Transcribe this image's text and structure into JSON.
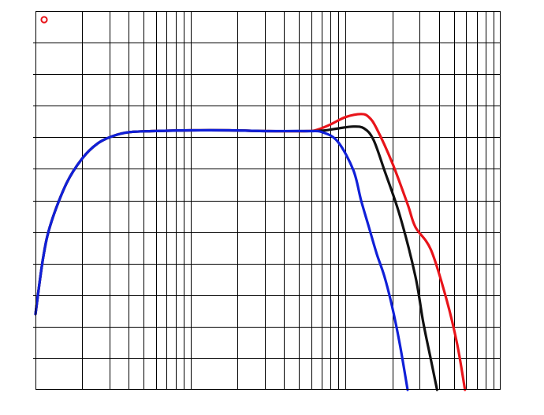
{
  "chart_data": {
    "type": "line",
    "title": "",
    "xlabel": "",
    "ylabel": "",
    "x_scale": "log",
    "x_decades": 3,
    "y_divisions": 12,
    "grid": true,
    "legend": "none",
    "series": [
      {
        "color": "#e8141a",
        "points": [
          [
            0.0,
            0.2
          ],
          [
            0.05,
            0.35
          ],
          [
            0.1,
            0.44
          ],
          [
            0.2,
            0.545
          ],
          [
            0.3,
            0.61
          ],
          [
            0.4,
            0.65
          ],
          [
            0.5,
            0.67
          ],
          [
            0.6,
            0.68
          ],
          [
            0.75,
            0.683
          ],
          [
            1.0,
            0.685
          ],
          [
            1.25,
            0.685
          ],
          [
            1.5,
            0.683
          ],
          [
            1.75,
            0.683
          ],
          [
            1.82,
            0.687
          ],
          [
            1.9,
            0.7
          ],
          [
            2.0,
            0.72
          ],
          [
            2.1,
            0.728
          ],
          [
            2.15,
            0.72
          ],
          [
            2.2,
            0.69
          ],
          [
            2.3,
            0.6
          ],
          [
            2.4,
            0.49
          ],
          [
            2.45,
            0.43
          ],
          [
            2.55,
            0.37
          ],
          [
            2.65,
            0.24
          ],
          [
            2.72,
            0.12
          ],
          [
            2.77,
            0.0
          ]
        ]
      },
      {
        "color": "#111111",
        "points": [
          [
            0.0,
            0.2
          ],
          [
            0.05,
            0.35
          ],
          [
            0.1,
            0.44
          ],
          [
            0.2,
            0.545
          ],
          [
            0.3,
            0.61
          ],
          [
            0.4,
            0.65
          ],
          [
            0.5,
            0.67
          ],
          [
            0.6,
            0.68
          ],
          [
            0.75,
            0.683
          ],
          [
            1.0,
            0.685
          ],
          [
            1.25,
            0.685
          ],
          [
            1.5,
            0.683
          ],
          [
            1.75,
            0.683
          ],
          [
            1.85,
            0.684
          ],
          [
            1.95,
            0.69
          ],
          [
            2.05,
            0.695
          ],
          [
            2.12,
            0.69
          ],
          [
            2.18,
            0.66
          ],
          [
            2.25,
            0.58
          ],
          [
            2.35,
            0.46
          ],
          [
            2.45,
            0.3
          ],
          [
            2.5,
            0.18
          ],
          [
            2.55,
            0.08
          ],
          [
            2.59,
            0.0
          ]
        ]
      },
      {
        "color": "#1020d8",
        "points": [
          [
            0.0,
            0.2
          ],
          [
            0.05,
            0.35
          ],
          [
            0.1,
            0.44
          ],
          [
            0.2,
            0.545
          ],
          [
            0.3,
            0.61
          ],
          [
            0.4,
            0.65
          ],
          [
            0.5,
            0.67
          ],
          [
            0.6,
            0.68
          ],
          [
            0.75,
            0.683
          ],
          [
            1.0,
            0.685
          ],
          [
            1.25,
            0.685
          ],
          [
            1.5,
            0.683
          ],
          [
            1.75,
            0.683
          ],
          [
            1.85,
            0.68
          ],
          [
            1.95,
            0.655
          ],
          [
            2.05,
            0.58
          ],
          [
            2.1,
            0.5
          ],
          [
            2.15,
            0.43
          ],
          [
            2.2,
            0.36
          ],
          [
            2.25,
            0.3
          ],
          [
            2.3,
            0.22
          ],
          [
            2.35,
            0.12
          ],
          [
            2.4,
            0.0
          ]
        ]
      }
    ]
  },
  "icons": {
    "corner_marker": "red-circle-marker-icon"
  }
}
